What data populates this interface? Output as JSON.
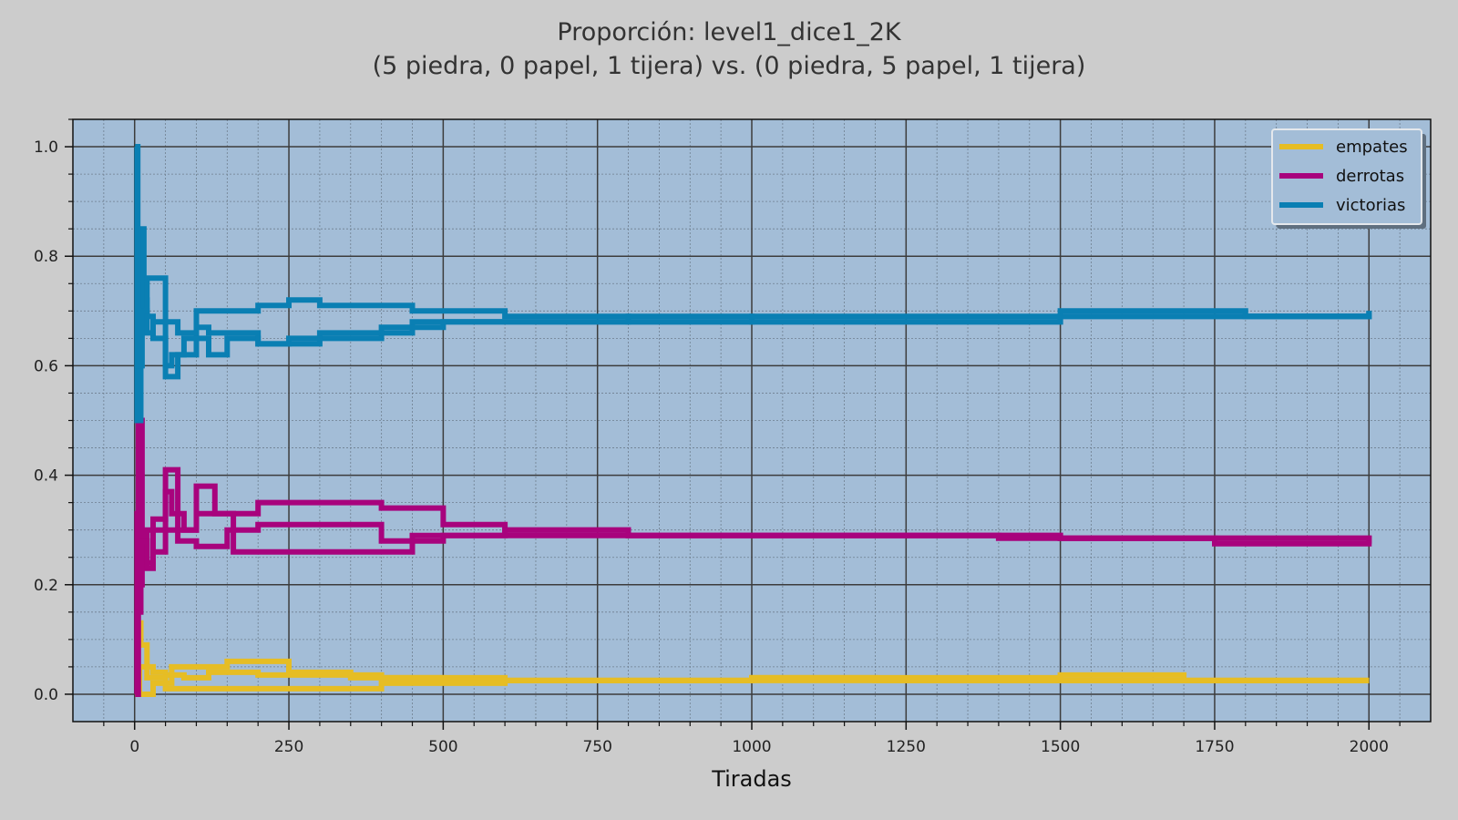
{
  "chart_data": {
    "type": "line",
    "title_line1": "Proporción: level1_dice1_2K",
    "title_line2": "(5 piedra, 0 papel, 1 tijera) vs. (0 piedra, 5 papel, 1 tijera)",
    "xlabel": "Tiradas",
    "ylabel": "",
    "xlim": [
      -100,
      2100
    ],
    "ylim": [
      -0.05,
      1.05
    ],
    "xticks": [
      0,
      250,
      500,
      750,
      1000,
      1250,
      1500,
      1750,
      2000
    ],
    "yticks": [
      0.0,
      0.2,
      0.4,
      0.6,
      0.8,
      1.0
    ],
    "grid": true,
    "legend_position": "top-right",
    "background_color": "#a3bdd7",
    "figure_color": "#cccccc",
    "series": [
      {
        "name": "empates",
        "color": "#e6bd24",
        "runs": [
          [
            [
              1,
              0.0
            ],
            [
              5,
              0.13
            ],
            [
              10,
              0.09
            ],
            [
              20,
              0.05
            ],
            [
              30,
              0.04
            ],
            [
              50,
              0.035
            ],
            [
              80,
              0.03
            ],
            [
              120,
              0.04
            ],
            [
              200,
              0.035
            ],
            [
              300,
              0.035
            ],
            [
              400,
              0.03
            ],
            [
              600,
              0.025
            ],
            [
              1000,
              0.025
            ],
            [
              1500,
              0.025
            ],
            [
              2000,
              0.025
            ]
          ],
          [
            [
              1,
              0.0
            ],
            [
              5,
              0.0
            ],
            [
              15,
              0.0
            ],
            [
              30,
              0.02
            ],
            [
              60,
              0.05
            ],
            [
              100,
              0.05
            ],
            [
              150,
              0.06
            ],
            [
              250,
              0.04
            ],
            [
              350,
              0.03
            ],
            [
              500,
              0.025
            ],
            [
              800,
              0.025
            ],
            [
              1000,
              0.03
            ],
            [
              1200,
              0.025
            ],
            [
              1500,
              0.025
            ],
            [
              2000,
              0.025
            ]
          ],
          [
            [
              1,
              0.0
            ],
            [
              8,
              0.05
            ],
            [
              20,
              0.03
            ],
            [
              50,
              0.01
            ],
            [
              100,
              0.01
            ],
            [
              200,
              0.01
            ],
            [
              300,
              0.01
            ],
            [
              400,
              0.02
            ],
            [
              600,
              0.025
            ],
            [
              1000,
              0.03
            ],
            [
              1300,
              0.03
            ],
            [
              1500,
              0.035
            ],
            [
              1700,
              0.025
            ],
            [
              2000,
              0.025
            ]
          ]
        ]
      },
      {
        "name": "derrotas",
        "color": "#a8037d",
        "runs": [
          [
            [
              1,
              0.0
            ],
            [
              4,
              0.33
            ],
            [
              8,
              0.2
            ],
            [
              12,
              0.28
            ],
            [
              20,
              0.24
            ],
            [
              30,
              0.3
            ],
            [
              50,
              0.37
            ],
            [
              60,
              0.33
            ],
            [
              80,
              0.3
            ],
            [
              100,
              0.33
            ],
            [
              150,
              0.33
            ],
            [
              200,
              0.35
            ],
            [
              250,
              0.35
            ],
            [
              300,
              0.35
            ],
            [
              400,
              0.34
            ],
            [
              500,
              0.31
            ],
            [
              600,
              0.3
            ],
            [
              800,
              0.29
            ],
            [
              1000,
              0.29
            ],
            [
              1500,
              0.285
            ],
            [
              1800,
              0.285
            ],
            [
              2000,
              0.28
            ]
          ],
          [
            [
              1,
              0.0
            ],
            [
              6,
              0.5
            ],
            [
              12,
              0.25
            ],
            [
              20,
              0.3
            ],
            [
              30,
              0.26
            ],
            [
              50,
              0.3
            ],
            [
              70,
              0.28
            ],
            [
              100,
              0.27
            ],
            [
              150,
              0.3
            ],
            [
              200,
              0.31
            ],
            [
              300,
              0.31
            ],
            [
              400,
              0.28
            ],
            [
              500,
              0.29
            ],
            [
              700,
              0.29
            ],
            [
              1000,
              0.29
            ],
            [
              1500,
              0.285
            ],
            [
              2000,
              0.275
            ]
          ],
          [
            [
              1,
              0.0
            ],
            [
              4,
              0.15
            ],
            [
              10,
              0.28
            ],
            [
              20,
              0.23
            ],
            [
              30,
              0.32
            ],
            [
              50,
              0.41
            ],
            [
              70,
              0.3
            ],
            [
              100,
              0.38
            ],
            [
              130,
              0.33
            ],
            [
              160,
              0.26
            ],
            [
              200,
              0.26
            ],
            [
              250,
              0.26
            ],
            [
              350,
              0.26
            ],
            [
              400,
              0.26
            ],
            [
              450,
              0.29
            ],
            [
              600,
              0.3
            ],
            [
              800,
              0.29
            ],
            [
              1000,
              0.29
            ],
            [
              1400,
              0.285
            ],
            [
              1750,
              0.275
            ],
            [
              2000,
              0.28
            ]
          ]
        ]
      },
      {
        "name": "victorias",
        "color": "#0a7fb3",
        "runs": [
          [
            [
              1,
              1.0
            ],
            [
              4,
              0.5
            ],
            [
              8,
              0.8
            ],
            [
              12,
              0.72
            ],
            [
              20,
              0.69
            ],
            [
              30,
              0.65
            ],
            [
              50,
              0.6
            ],
            [
              60,
              0.62
            ],
            [
              80,
              0.65
            ],
            [
              120,
              0.62
            ],
            [
              150,
              0.65
            ],
            [
              200,
              0.64
            ],
            [
              250,
              0.65
            ],
            [
              300,
              0.65
            ],
            [
              400,
              0.66
            ],
            [
              450,
              0.68
            ],
            [
              600,
              0.68
            ],
            [
              800,
              0.69
            ],
            [
              1000,
              0.68
            ],
            [
              1500,
              0.69
            ],
            [
              2000,
              0.7
            ]
          ],
          [
            [
              1,
              1.0
            ],
            [
              5,
              0.5
            ],
            [
              10,
              0.85
            ],
            [
              15,
              0.7
            ],
            [
              20,
              0.66
            ],
            [
              30,
              0.68
            ],
            [
              50,
              0.58
            ],
            [
              70,
              0.62
            ],
            [
              100,
              0.67
            ],
            [
              120,
              0.66
            ],
            [
              150,
              0.66
            ],
            [
              200,
              0.64
            ],
            [
              250,
              0.64
            ],
            [
              300,
              0.66
            ],
            [
              400,
              0.67
            ],
            [
              500,
              0.68
            ],
            [
              700,
              0.68
            ],
            [
              1000,
              0.68
            ],
            [
              1500,
              0.69
            ],
            [
              2000,
              0.7
            ]
          ],
          [
            [
              1,
              1.0
            ],
            [
              5,
              0.6
            ],
            [
              12,
              0.7
            ],
            [
              20,
              0.76
            ],
            [
              30,
              0.76
            ],
            [
              50,
              0.68
            ],
            [
              70,
              0.66
            ],
            [
              100,
              0.7
            ],
            [
              150,
              0.7
            ],
            [
              200,
              0.71
            ],
            [
              250,
              0.72
            ],
            [
              300,
              0.71
            ],
            [
              400,
              0.71
            ],
            [
              450,
              0.7
            ],
            [
              600,
              0.69
            ],
            [
              800,
              0.68
            ],
            [
              1000,
              0.69
            ],
            [
              1300,
              0.69
            ],
            [
              1500,
              0.7
            ],
            [
              1800,
              0.69
            ],
            [
              2000,
              0.695
            ]
          ]
        ]
      }
    ]
  }
}
